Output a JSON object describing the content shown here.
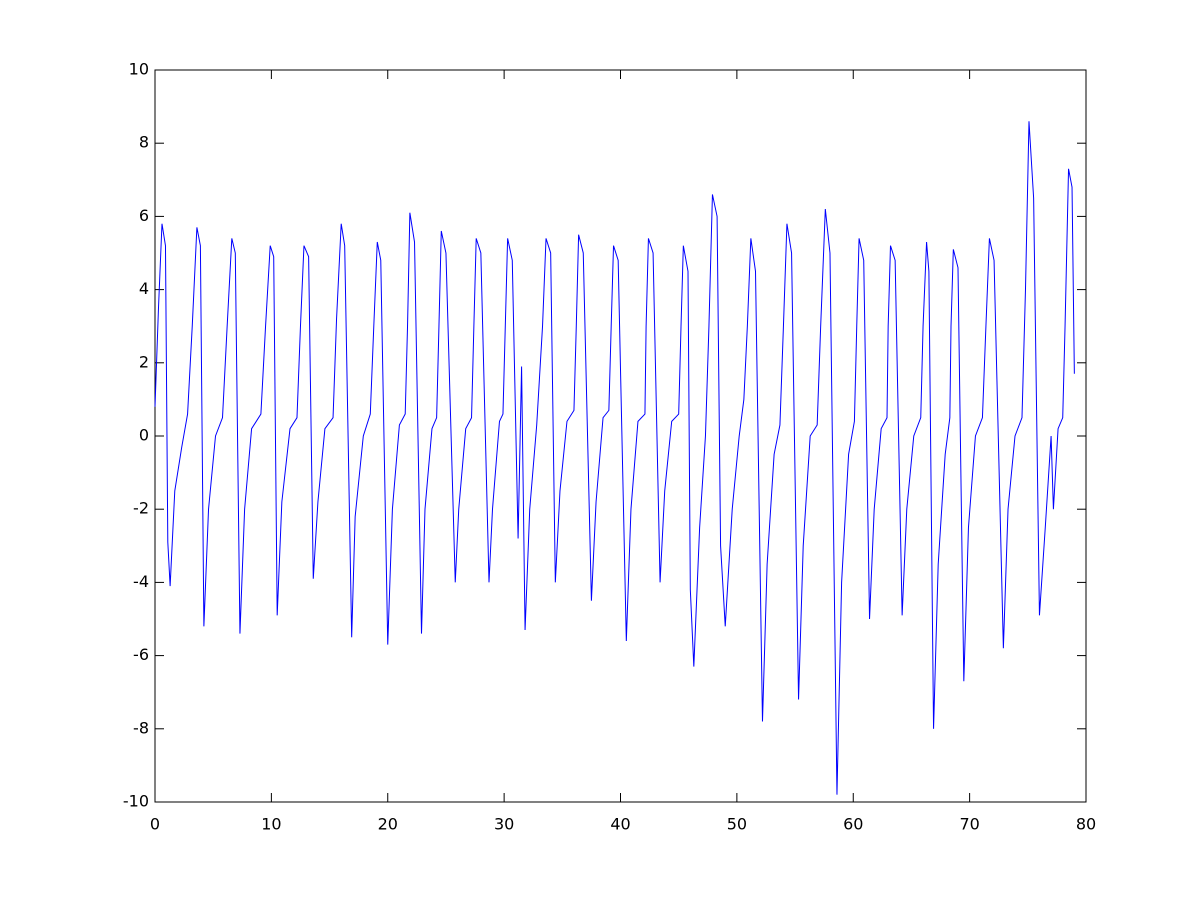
{
  "chart_data": {
    "type": "line",
    "x": [
      0,
      0.3,
      0.6,
      0.9,
      1.1,
      1.3,
      1.7,
      2.3,
      2.8,
      3.2,
      3.6,
      3.9,
      4.2,
      4.6,
      5.2,
      5.8,
      6.2,
      6.6,
      6.9,
      7.3,
      7.7,
      8.3,
      9.1,
      9.5,
      9.9,
      10.2,
      10.5,
      10.9,
      11.6,
      12.2,
      12.5,
      12.8,
      13.2,
      13.6,
      14.0,
      14.6,
      15.3,
      15.6,
      16.0,
      16.3,
      16.9,
      17.2,
      17.9,
      18.5,
      18.8,
      19.1,
      19.4,
      20.0,
      20.4,
      21.0,
      21.5,
      21.7,
      21.9,
      22.3,
      22.9,
      23.2,
      23.8,
      24.2,
      24.4,
      24.6,
      25.0,
      25.8,
      26.1,
      26.7,
      27.2,
      27.4,
      27.6,
      28.0,
      28.7,
      29.0,
      29.6,
      29.9,
      30.1,
      30.3,
      30.7,
      31.2,
      31.5,
      31.8,
      32.2,
      32.8,
      33.3,
      33.6,
      34.0,
      34.4,
      34.8,
      35.4,
      36.0,
      36.2,
      36.4,
      36.8,
      37.5,
      37.9,
      38.5,
      39.0,
      39.2,
      39.4,
      39.8,
      40.5,
      40.9,
      41.5,
      42.1,
      42.2,
      42.4,
      42.8,
      43.4,
      43.8,
      44.4,
      45.0,
      45.2,
      45.4,
      45.8,
      46.0,
      46.3,
      46.8,
      47.3,
      47.6,
      47.9,
      48.3,
      48.6,
      49.0,
      49.6,
      50.2,
      50.6,
      50.9,
      51.2,
      51.6,
      52.2,
      52.6,
      53.2,
      53.7,
      54.0,
      54.3,
      54.7,
      55.3,
      55.7,
      56.3,
      56.9,
      57.2,
      57.6,
      58.0,
      58.6,
      59.0,
      59.6,
      60.1,
      60.3,
      60.5,
      60.9,
      61.4,
      61.8,
      62.4,
      62.9,
      63.0,
      63.2,
      63.6,
      64.2,
      64.6,
      65.2,
      65.8,
      66.0,
      66.3,
      66.5,
      66.9,
      67.3,
      67.9,
      68.3,
      68.4,
      68.6,
      69.0,
      69.5,
      69.9,
      70.5,
      71.1,
      71.4,
      71.7,
      72.1,
      72.9,
      73.3,
      73.9,
      74.5,
      74.8,
      75.1,
      75.5,
      76.0,
      76.5,
      77.0,
      77.2,
      77.6,
      78.0,
      78.2,
      78.5,
      78.8,
      79.0
    ],
    "series": [
      {
        "color": "#0000ff",
        "values": [
          0.8,
          3.5,
          5.8,
          5.2,
          -2.9,
          -4.1,
          -1.5,
          -0.3,
          0.6,
          3.0,
          5.7,
          5.2,
          -5.2,
          -2.0,
          0.0,
          0.5,
          3.0,
          5.4,
          5.0,
          -5.4,
          -2.0,
          0.2,
          0.6,
          3.0,
          5.2,
          4.9,
          -4.9,
          -1.8,
          0.2,
          0.5,
          3.0,
          5.2,
          4.9,
          -3.9,
          -1.8,
          0.2,
          0.5,
          3.2,
          5.8,
          5.2,
          -5.5,
          -2.2,
          0.0,
          0.6,
          3.0,
          5.3,
          4.8,
          -5.7,
          -2.0,
          0.3,
          0.6,
          3.0,
          6.1,
          5.3,
          -5.4,
          -2.0,
          0.2,
          0.5,
          3.0,
          5.6,
          5.0,
          -4.0,
          -2.0,
          0.2,
          0.5,
          3.0,
          5.4,
          5.0,
          -4.0,
          -2.0,
          0.4,
          0.6,
          3.0,
          5.4,
          4.8,
          -2.8,
          1.9,
          -5.3,
          -2.0,
          0.3,
          3.0,
          5.4,
          5.0,
          -4.0,
          -1.5,
          0.4,
          0.7,
          3.0,
          5.5,
          5.0,
          -4.5,
          -1.8,
          0.5,
          0.7,
          3.0,
          5.2,
          4.8,
          -5.6,
          -2.0,
          0.4,
          0.6,
          3.0,
          5.4,
          5.0,
          -4.0,
          -1.5,
          0.4,
          0.6,
          3.0,
          5.2,
          4.5,
          -4.2,
          -6.3,
          -2.5,
          0.0,
          3.0,
          6.6,
          6.0,
          -3.0,
          -5.2,
          -2.0,
          0.0,
          1.0,
          3.0,
          5.4,
          4.5,
          -7.8,
          -3.5,
          -0.5,
          0.3,
          3.0,
          5.8,
          5.0,
          -7.2,
          -3.0,
          0.0,
          0.3,
          3.0,
          6.2,
          5.0,
          -9.8,
          -4.0,
          -0.5,
          0.4,
          3.0,
          5.4,
          4.8,
          -5.0,
          -2.0,
          0.2,
          0.5,
          3.0,
          5.2,
          4.8,
          -4.9,
          -2.0,
          0.0,
          0.5,
          3.0,
          5.3,
          4.5,
          -8.0,
          -3.5,
          -0.5,
          0.5,
          3.0,
          5.1,
          4.6,
          -6.7,
          -2.5,
          0.0,
          0.5,
          3.0,
          5.4,
          4.8,
          -5.8,
          -2.0,
          0.0,
          0.5,
          4.0,
          8.6,
          6.5,
          -4.9,
          -2.5,
          0.0,
          -2.0,
          0.2,
          0.5,
          3.0,
          7.3,
          6.8,
          1.7
        ]
      }
    ],
    "xlim": [
      0,
      80
    ],
    "xticks": [
      0,
      10,
      20,
      30,
      40,
      50,
      60,
      70,
      80
    ],
    "ylim": [
      -10,
      10
    ],
    "yticks": [
      -10,
      -8,
      -6,
      -4,
      -2,
      0,
      2,
      4,
      6,
      8,
      10
    ],
    "grid": false
  }
}
